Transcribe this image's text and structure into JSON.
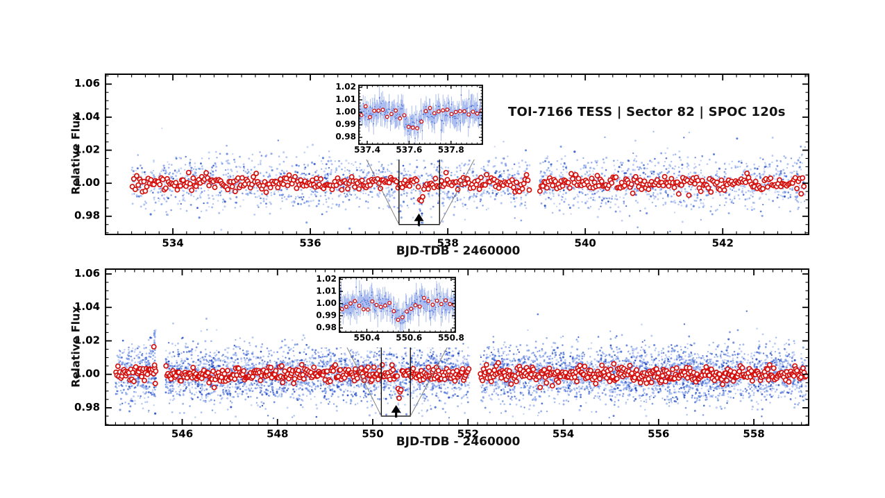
{
  "colors": {
    "background": "#ffffff",
    "axis": "#000000",
    "binned_red": "#d40f0c",
    "binned_fill": "#ffffff",
    "blue_palette": [
      "#a9bdf1",
      "#7b9ce8",
      "#4a6fd8",
      "#1f48c0"
    ],
    "errorbar_blue": "rgba(90,125,225,0.50)",
    "inset_dot_blue": "#2b55cc",
    "connector_gray": "#777777",
    "annotation_black": "#000000"
  },
  "chart_data": [
    {
      "type": "scatter",
      "title": "TOI-7166 TESS | Sector 82 | SPOC 120s",
      "xlabel": "BJD-TDB - 2460000",
      "ylabel": "Relative Flux",
      "xlim": [
        533.02,
        543.25
      ],
      "ylim": [
        0.969,
        1.066
      ],
      "xticks": {
        "values": [
          534,
          536,
          538,
          540,
          542
        ],
        "labels": [
          "534",
          "536",
          "538",
          "540",
          "542"
        ]
      },
      "yticks": {
        "values": [
          0.98,
          1.0,
          1.02,
          1.04,
          1.06
        ],
        "labels": [
          "0.98",
          "1.00",
          "1.02",
          "1.04",
          "1.06"
        ]
      },
      "x_minor_step": 0.2,
      "y_minor_step": 0.005,
      "segments": [
        [
          533.4,
          539.19
        ],
        [
          539.33,
          543.2
        ]
      ],
      "points_series": {
        "name": "unbinned-flux",
        "marker": "dot",
        "n": 2600,
        "sigma": 0.008
      },
      "binned_series": {
        "name": "binned-flux",
        "marker": "open-circle",
        "bin_days": 0.021,
        "sigma": 0.0024
      },
      "transit": {
        "center": 537.62,
        "depth": 0.0105,
        "duration": 0.05,
        "ingress": 0.03
      },
      "zoom_box": {
        "x": [
          537.29,
          537.88
        ],
        "y": [
          0.975,
          1.0192
        ]
      },
      "arrow_x": 537.58,
      "inset": {
        "xlim": [
          537.36,
          537.95
        ],
        "ylim": [
          0.9745,
          1.0216
        ],
        "xticks": {
          "values": [
            537.4,
            537.6,
            537.8
          ],
          "labels": [
            "537.4",
            "537.6",
            "537.8"
          ]
        },
        "yticks": {
          "values": [
            0.98,
            0.99,
            1.0,
            1.01,
            1.02
          ],
          "labels": [
            "0.98",
            "0.99",
            "1.00",
            "1.01",
            "1.02"
          ]
        },
        "x_minor_step": 0.025,
        "y_minor_step": 0.0025,
        "cadence": 0.0031,
        "errorbar_halflength": 0.0078,
        "transit": {
          "center": 537.62,
          "depth": 0.0105,
          "duration": 0.05,
          "ingress": 0.03
        }
      }
    },
    {
      "type": "scatter",
      "title": "",
      "xlabel": "BJD-TDB - 2460000",
      "ylabel": "Relative Flux",
      "xlim": [
        544.39,
        559.15
      ],
      "ylim": [
        0.9696,
        1.0629
      ],
      "xticks": {
        "values": [
          546,
          548,
          550,
          552,
          554,
          556,
          558
        ],
        "labels": [
          "546",
          "548",
          "550",
          "552",
          "554",
          "556",
          "558"
        ]
      },
      "yticks": {
        "values": [
          0.98,
          1.0,
          1.02,
          1.04,
          1.06
        ],
        "labels": [
          "0.98",
          "1.00",
          "1.02",
          "1.04",
          "1.06"
        ]
      },
      "x_minor_step": 0.2,
      "y_minor_step": 0.005,
      "segments": [
        [
          544.6,
          545.45
        ],
        [
          545.65,
          552.03
        ],
        [
          552.25,
          559.1
        ]
      ],
      "points_series": {
        "name": "unbinned-flux",
        "marker": "dot",
        "n": 6200,
        "sigma": 0.0082
      },
      "binned_series": {
        "name": "binned-flux",
        "marker": "open-circle",
        "bin_days": 0.021,
        "sigma": 0.0024
      },
      "transit": {
        "center": 550.56,
        "depth": 0.011,
        "duration": 0.04,
        "ingress": 0.035
      },
      "zoom_box": {
        "x": [
          550.18,
          550.79
        ],
        "y": [
          0.975,
          1.0196
        ]
      },
      "arrow_x": 550.49,
      "outburst": {
        "x": 545.42,
        "blue_n": 26,
        "blue_flux_range": [
          0.991,
          1.028
        ],
        "red_points": [
          [
            545.405,
            1.0165
          ],
          [
            545.42,
            1.0055
          ],
          [
            545.435,
            0.9945
          ]
        ]
      },
      "inset": {
        "xlim": [
          550.27,
          550.82
        ],
        "ylim": [
          0.9765,
          1.0215
        ],
        "xticks": {
          "values": [
            550.4,
            550.6,
            550.8
          ],
          "labels": [
            "550.4",
            "550.6",
            "550.8"
          ]
        },
        "yticks": {
          "values": [
            0.98,
            0.99,
            1.0,
            1.01,
            1.02
          ],
          "labels": [
            "0.98",
            "0.99",
            "1.00",
            "1.01",
            "1.02"
          ]
        },
        "x_minor_step": 0.025,
        "y_minor_step": 0.0025,
        "cadence": 0.0031,
        "errorbar_halflength": 0.0078,
        "transit": {
          "center": 550.56,
          "depth": 0.011,
          "duration": 0.04,
          "ingress": 0.035
        }
      }
    }
  ]
}
